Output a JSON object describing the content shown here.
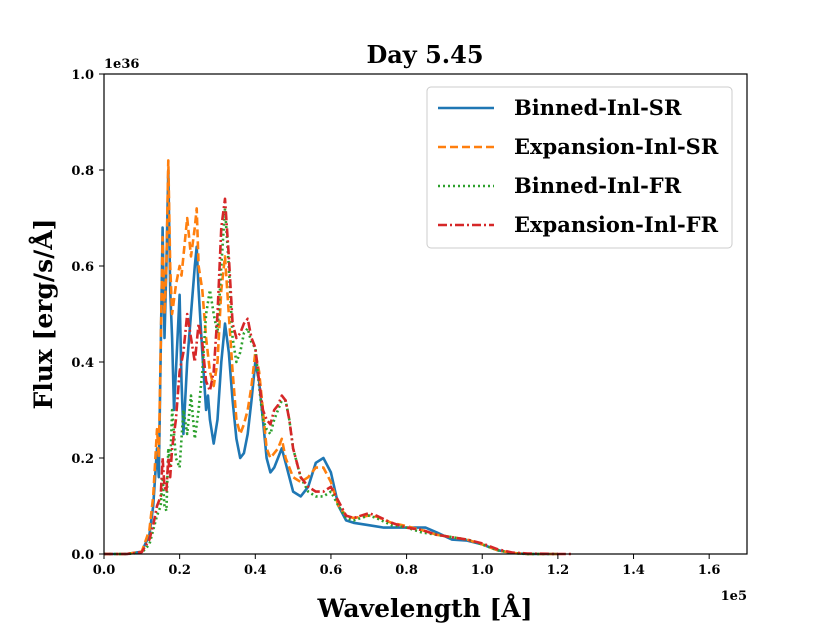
{
  "chart_data": {
    "type": "line",
    "title": "Day 5.45",
    "xlabel": "Wavelength [Å]",
    "ylabel": "Flux [erg/s/Å]",
    "x_offset_label": "1e5",
    "y_offset_label": "1e36",
    "xlim": [
      0.0,
      1.7
    ],
    "ylim": [
      0.0,
      1.0
    ],
    "x_ticks": [
      "0.0",
      "0.2",
      "0.4",
      "0.6",
      "0.8",
      "1.0",
      "1.2",
      "1.4",
      "1.6"
    ],
    "y_ticks": [
      "0.0",
      "0.2",
      "0.4",
      "0.6",
      "0.8",
      "1.0"
    ],
    "legend_position": "top-right",
    "series": [
      {
        "name": "Binned-Inl-SR",
        "color": "#1f77b4",
        "dash": "solid",
        "points": [
          [
            0.0,
            0.0
          ],
          [
            0.06,
            0.0
          ],
          [
            0.1,
            0.005
          ],
          [
            0.12,
            0.04
          ],
          [
            0.13,
            0.1
          ],
          [
            0.14,
            0.22
          ],
          [
            0.145,
            0.16
          ],
          [
            0.155,
            0.68
          ],
          [
            0.16,
            0.45
          ],
          [
            0.165,
            0.6
          ],
          [
            0.17,
            0.8
          ],
          [
            0.175,
            0.55
          ],
          [
            0.18,
            0.45
          ],
          [
            0.185,
            0.3
          ],
          [
            0.19,
            0.38
          ],
          [
            0.2,
            0.54
          ],
          [
            0.205,
            0.36
          ],
          [
            0.21,
            0.25
          ],
          [
            0.22,
            0.4
          ],
          [
            0.23,
            0.5
          ],
          [
            0.24,
            0.6
          ],
          [
            0.245,
            0.64
          ],
          [
            0.25,
            0.55
          ],
          [
            0.26,
            0.42
          ],
          [
            0.27,
            0.3
          ],
          [
            0.275,
            0.33
          ],
          [
            0.28,
            0.28
          ],
          [
            0.29,
            0.23
          ],
          [
            0.3,
            0.28
          ],
          [
            0.31,
            0.4
          ],
          [
            0.32,
            0.48
          ],
          [
            0.33,
            0.42
          ],
          [
            0.34,
            0.32
          ],
          [
            0.35,
            0.24
          ],
          [
            0.36,
            0.2
          ],
          [
            0.37,
            0.21
          ],
          [
            0.38,
            0.25
          ],
          [
            0.39,
            0.32
          ],
          [
            0.4,
            0.4
          ],
          [
            0.41,
            0.36
          ],
          [
            0.42,
            0.28
          ],
          [
            0.43,
            0.2
          ],
          [
            0.44,
            0.17
          ],
          [
            0.45,
            0.18
          ],
          [
            0.46,
            0.2
          ],
          [
            0.47,
            0.22
          ],
          [
            0.48,
            0.19
          ],
          [
            0.5,
            0.13
          ],
          [
            0.52,
            0.12
          ],
          [
            0.54,
            0.14
          ],
          [
            0.56,
            0.19
          ],
          [
            0.58,
            0.2
          ],
          [
            0.6,
            0.17
          ],
          [
            0.62,
            0.1
          ],
          [
            0.64,
            0.07
          ],
          [
            0.66,
            0.065
          ],
          [
            0.7,
            0.06
          ],
          [
            0.74,
            0.055
          ],
          [
            0.78,
            0.055
          ],
          [
            0.82,
            0.055
          ],
          [
            0.85,
            0.055
          ],
          [
            0.88,
            0.045
          ],
          [
            0.92,
            0.03
          ],
          [
            0.96,
            0.028
          ],
          [
            1.0,
            0.02
          ],
          [
            1.04,
            0.008
          ],
          [
            1.08,
            0.002
          ],
          [
            1.12,
            0.0
          ],
          [
            1.2,
            0.0
          ]
        ]
      },
      {
        "name": "Expansion-Inl-SR",
        "color": "#ff7f0e",
        "dash": "dashed",
        "points": [
          [
            0.0,
            0.0
          ],
          [
            0.06,
            0.0
          ],
          [
            0.1,
            0.005
          ],
          [
            0.12,
            0.05
          ],
          [
            0.13,
            0.12
          ],
          [
            0.14,
            0.26
          ],
          [
            0.145,
            0.2
          ],
          [
            0.155,
            0.66
          ],
          [
            0.16,
            0.5
          ],
          [
            0.165,
            0.6
          ],
          [
            0.17,
            0.82
          ],
          [
            0.175,
            0.6
          ],
          [
            0.18,
            0.5
          ],
          [
            0.19,
            0.56
          ],
          [
            0.2,
            0.6
          ],
          [
            0.205,
            0.58
          ],
          [
            0.21,
            0.62
          ],
          [
            0.22,
            0.7
          ],
          [
            0.23,
            0.62
          ],
          [
            0.24,
            0.68
          ],
          [
            0.245,
            0.72
          ],
          [
            0.25,
            0.6
          ],
          [
            0.26,
            0.55
          ],
          [
            0.27,
            0.45
          ],
          [
            0.28,
            0.38
          ],
          [
            0.29,
            0.35
          ],
          [
            0.3,
            0.4
          ],
          [
            0.31,
            0.55
          ],
          [
            0.32,
            0.62
          ],
          [
            0.33,
            0.5
          ],
          [
            0.34,
            0.38
          ],
          [
            0.35,
            0.28
          ],
          [
            0.36,
            0.25
          ],
          [
            0.37,
            0.27
          ],
          [
            0.38,
            0.3
          ],
          [
            0.39,
            0.35
          ],
          [
            0.4,
            0.42
          ],
          [
            0.41,
            0.38
          ],
          [
            0.42,
            0.3
          ],
          [
            0.43,
            0.22
          ],
          [
            0.44,
            0.2
          ],
          [
            0.45,
            0.21
          ],
          [
            0.46,
            0.22
          ],
          [
            0.47,
            0.24
          ],
          [
            0.48,
            0.2
          ],
          [
            0.5,
            0.16
          ],
          [
            0.52,
            0.15
          ],
          [
            0.54,
            0.16
          ],
          [
            0.56,
            0.18
          ],
          [
            0.58,
            0.18
          ],
          [
            0.6,
            0.15
          ],
          [
            0.62,
            0.1
          ],
          [
            0.64,
            0.08
          ],
          [
            0.66,
            0.075
          ],
          [
            0.7,
            0.08
          ],
          [
            0.72,
            0.078
          ],
          [
            0.76,
            0.065
          ],
          [
            0.8,
            0.058
          ],
          [
            0.84,
            0.05
          ],
          [
            0.88,
            0.04
          ],
          [
            0.92,
            0.035
          ],
          [
            0.96,
            0.03
          ],
          [
            1.0,
            0.02
          ],
          [
            1.04,
            0.008
          ],
          [
            1.08,
            0.002
          ],
          [
            1.12,
            0.0
          ],
          [
            1.2,
            0.0
          ]
        ]
      },
      {
        "name": "Binned-Inl-FR",
        "color": "#2ca02c",
        "dash": "dotted",
        "points": [
          [
            0.0,
            0.0
          ],
          [
            0.06,
            0.0
          ],
          [
            0.1,
            0.003
          ],
          [
            0.12,
            0.02
          ],
          [
            0.13,
            0.05
          ],
          [
            0.14,
            0.08
          ],
          [
            0.15,
            0.1
          ],
          [
            0.155,
            0.16
          ],
          [
            0.16,
            0.1
          ],
          [
            0.165,
            0.09
          ],
          [
            0.17,
            0.22
          ],
          [
            0.175,
            0.18
          ],
          [
            0.18,
            0.3
          ],
          [
            0.19,
            0.2
          ],
          [
            0.2,
            0.18
          ],
          [
            0.21,
            0.3
          ],
          [
            0.22,
            0.25
          ],
          [
            0.23,
            0.33
          ],
          [
            0.24,
            0.24
          ],
          [
            0.25,
            0.3
          ],
          [
            0.26,
            0.38
          ],
          [
            0.27,
            0.5
          ],
          [
            0.28,
            0.55
          ],
          [
            0.29,
            0.5
          ],
          [
            0.3,
            0.46
          ],
          [
            0.31,
            0.6
          ],
          [
            0.32,
            0.72
          ],
          [
            0.33,
            0.6
          ],
          [
            0.34,
            0.45
          ],
          [
            0.35,
            0.4
          ],
          [
            0.36,
            0.42
          ],
          [
            0.37,
            0.46
          ],
          [
            0.38,
            0.47
          ],
          [
            0.39,
            0.44
          ],
          [
            0.4,
            0.43
          ],
          [
            0.41,
            0.35
          ],
          [
            0.42,
            0.28
          ],
          [
            0.43,
            0.26
          ],
          [
            0.44,
            0.25
          ],
          [
            0.45,
            0.28
          ],
          [
            0.46,
            0.3
          ],
          [
            0.47,
            0.32
          ],
          [
            0.48,
            0.32
          ],
          [
            0.49,
            0.28
          ],
          [
            0.5,
            0.22
          ],
          [
            0.52,
            0.16
          ],
          [
            0.54,
            0.13
          ],
          [
            0.56,
            0.12
          ],
          [
            0.58,
            0.12
          ],
          [
            0.6,
            0.13
          ],
          [
            0.62,
            0.1
          ],
          [
            0.64,
            0.075
          ],
          [
            0.66,
            0.07
          ],
          [
            0.7,
            0.08
          ],
          [
            0.72,
            0.075
          ],
          [
            0.76,
            0.06
          ],
          [
            0.8,
            0.055
          ],
          [
            0.84,
            0.045
          ],
          [
            0.88,
            0.04
          ],
          [
            0.92,
            0.035
          ],
          [
            0.96,
            0.03
          ],
          [
            1.0,
            0.02
          ],
          [
            1.04,
            0.008
          ],
          [
            1.08,
            0.002
          ],
          [
            1.12,
            0.0
          ],
          [
            1.2,
            0.0
          ]
        ]
      },
      {
        "name": "Expansion-Inl-FR",
        "color": "#d62728",
        "dash": "dashdot",
        "points": [
          [
            0.0,
            0.0
          ],
          [
            0.06,
            0.0
          ],
          [
            0.1,
            0.004
          ],
          [
            0.12,
            0.03
          ],
          [
            0.13,
            0.06
          ],
          [
            0.14,
            0.1
          ],
          [
            0.15,
            0.12
          ],
          [
            0.155,
            0.2
          ],
          [
            0.16,
            0.14
          ],
          [
            0.165,
            0.13
          ],
          [
            0.17,
            0.2
          ],
          [
            0.175,
            0.16
          ],
          [
            0.18,
            0.22
          ],
          [
            0.19,
            0.28
          ],
          [
            0.2,
            0.38
          ],
          [
            0.21,
            0.42
          ],
          [
            0.22,
            0.5
          ],
          [
            0.23,
            0.45
          ],
          [
            0.24,
            0.4
          ],
          [
            0.25,
            0.48
          ],
          [
            0.26,
            0.44
          ],
          [
            0.27,
            0.36
          ],
          [
            0.28,
            0.34
          ],
          [
            0.29,
            0.38
          ],
          [
            0.3,
            0.5
          ],
          [
            0.31,
            0.68
          ],
          [
            0.32,
            0.74
          ],
          [
            0.33,
            0.62
          ],
          [
            0.34,
            0.48
          ],
          [
            0.35,
            0.45
          ],
          [
            0.36,
            0.46
          ],
          [
            0.37,
            0.48
          ],
          [
            0.38,
            0.49
          ],
          [
            0.39,
            0.45
          ],
          [
            0.4,
            0.43
          ],
          [
            0.41,
            0.36
          ],
          [
            0.42,
            0.3
          ],
          [
            0.43,
            0.28
          ],
          [
            0.44,
            0.27
          ],
          [
            0.45,
            0.3
          ],
          [
            0.46,
            0.31
          ],
          [
            0.47,
            0.33
          ],
          [
            0.48,
            0.32
          ],
          [
            0.49,
            0.28
          ],
          [
            0.5,
            0.22
          ],
          [
            0.52,
            0.16
          ],
          [
            0.54,
            0.14
          ],
          [
            0.56,
            0.13
          ],
          [
            0.58,
            0.13
          ],
          [
            0.6,
            0.14
          ],
          [
            0.62,
            0.11
          ],
          [
            0.64,
            0.08
          ],
          [
            0.66,
            0.075
          ],
          [
            0.7,
            0.085
          ],
          [
            0.72,
            0.08
          ],
          [
            0.76,
            0.065
          ],
          [
            0.8,
            0.055
          ],
          [
            0.84,
            0.05
          ],
          [
            0.88,
            0.04
          ],
          [
            0.92,
            0.035
          ],
          [
            0.96,
            0.03
          ],
          [
            1.0,
            0.022
          ],
          [
            1.04,
            0.01
          ],
          [
            1.08,
            0.003
          ],
          [
            1.12,
            0.001
          ],
          [
            1.2,
            0.0
          ],
          [
            1.24,
            0.0
          ]
        ]
      }
    ]
  }
}
